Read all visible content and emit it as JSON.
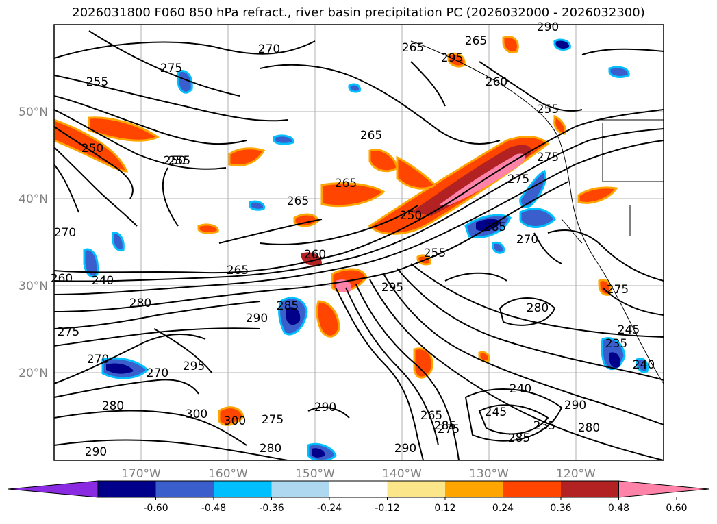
{
  "title": "2026031800 F060 850 hPa refract., river basin precipitation PC (2026032000 - 2026032300)",
  "axes": {
    "lat_labels": [
      "50°N",
      "40°N",
      "30°N",
      "20°N"
    ],
    "lon_labels": [
      "170°W",
      "160°W",
      "150°W",
      "140°W",
      "130°W",
      "120°W"
    ]
  },
  "colorbar": {
    "ticks": [
      "-0.60",
      "-0.48",
      "-0.36",
      "-0.24",
      "-0.12",
      "0.12",
      "0.24",
      "0.36",
      "0.48",
      "0.60"
    ],
    "colors": [
      "#8a2be2",
      "#00008b",
      "#3a5fcd",
      "#00bfff",
      "#add8f0",
      "#ffffff",
      "#fce68a",
      "#ffa500",
      "#ff4500",
      "#b22222",
      "#ff82a8"
    ]
  },
  "contour_labels": [
    "255",
    "250",
    "255",
    "270",
    "265",
    "265",
    "265",
    "265",
    "260",
    "265",
    "280",
    "285",
    "290",
    "295",
    "275",
    "270",
    "270",
    "280",
    "300",
    "290",
    "300",
    "275",
    "280",
    "290",
    "285",
    "290",
    "265",
    "275",
    "285",
    "295",
    "250",
    "255",
    "275",
    "285",
    "270",
    "275",
    "280",
    "245",
    "235",
    "240",
    "245",
    "240",
    "235",
    "290",
    "280",
    "290",
    "295",
    "265",
    "260",
    "255",
    "275",
    "270",
    "260",
    "275",
    "250",
    "240"
  ]
}
